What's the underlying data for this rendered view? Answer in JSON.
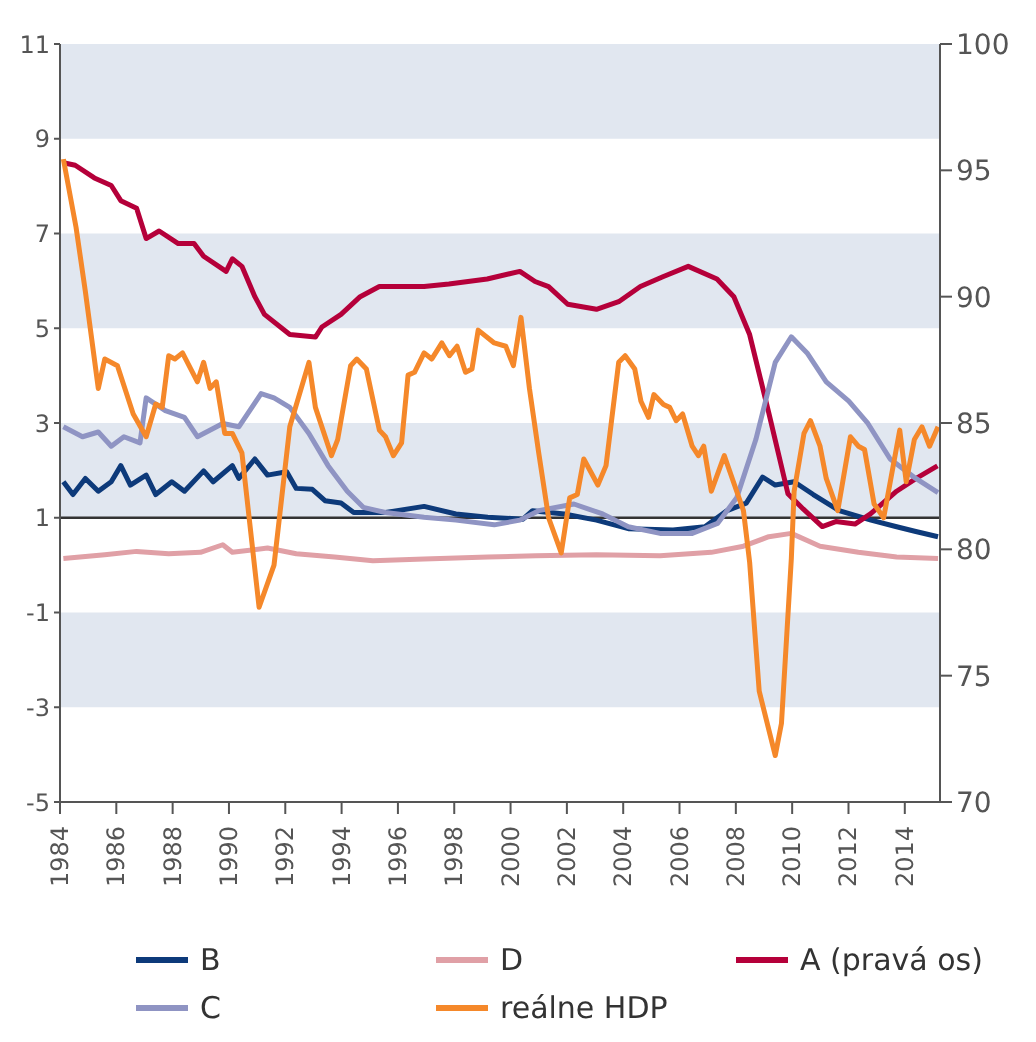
{
  "chart_data": {
    "type": "line",
    "xlim": [
      1984,
      2015.25
    ],
    "xticks": [
      1984,
      1986,
      1988,
      1990,
      1992,
      1994,
      1996,
      1998,
      2000,
      2002,
      2004,
      2006,
      2008,
      2010,
      2012,
      2014
    ],
    "ylim": [
      -5,
      11
    ],
    "yticks": [
      -5,
      -3,
      -1,
      1,
      3,
      5,
      7,
      9,
      11
    ],
    "y2lim": [
      70,
      100
    ],
    "y2ticks": [
      70,
      75,
      80,
      85,
      90,
      95,
      100
    ],
    "legend": "bottom",
    "grid": false,
    "bands": [
      {
        "axis": "y",
        "from": 9,
        "to": 11,
        "color": "#e1e7f0"
      },
      {
        "axis": "y",
        "from": 5,
        "to": 7,
        "color": "#e1e7f0"
      },
      {
        "axis": "y",
        "from": 1,
        "to": 3,
        "color": "#e1e7f0"
      },
      {
        "axis": "y",
        "from": -3,
        "to": -1,
        "color": "#e1e7f0"
      }
    ],
    "ref_lines": [
      {
        "axis": "y",
        "value": 1,
        "color": "#333333"
      }
    ],
    "series": [
      {
        "name": "B",
        "color": "#0d3a7a",
        "x": [
          1984.12,
          1984.46,
          1984.9,
          1985.36,
          1985.82,
          1986.16,
          1986.5,
          1987.06,
          1987.4,
          1987.97,
          1988.42,
          1989.1,
          1989.44,
          1990.12,
          1990.35,
          1990.92,
          1991.37,
          1992.05,
          1992.39,
          1992.96,
          1993.41,
          1993.98,
          1994.43,
          1995.56,
          1996.93,
          1998.06,
          1999.19,
          2000.44,
          2000.78,
          2001.91,
          2003.05,
          2004.18,
          2005.77,
          2006.9,
          2007.69,
          2008.37,
          2008.95,
          2009.4,
          2010.07,
          2010.75,
          2011.67,
          2012.8,
          2013.71,
          2014.39,
          2015.18
        ],
        "values": [
          1.76,
          1.49,
          1.83,
          1.56,
          1.76,
          2.1,
          1.69,
          1.9,
          1.49,
          1.76,
          1.56,
          1.99,
          1.76,
          2.1,
          1.83,
          2.24,
          1.9,
          1.97,
          1.62,
          1.6,
          1.36,
          1.31,
          1.11,
          1.11,
          1.24,
          1.08,
          1.01,
          0.97,
          1.15,
          1.08,
          0.95,
          0.77,
          0.74,
          0.81,
          1.15,
          1.31,
          1.86,
          1.69,
          1.76,
          1.49,
          1.15,
          0.95,
          0.81,
          0.71,
          0.6
        ]
      },
      {
        "name": "D",
        "color": "#e0a0a6",
        "x": [
          1984.12,
          1985.59,
          1986.72,
          1987.86,
          1988.99,
          1989.78,
          1990.12,
          1991.37,
          1992.39,
          1993.75,
          1995.11,
          1996.93,
          1999.19,
          2000.89,
          2003.05,
          2005.31,
          2007.13,
          2008.27,
          2009.17,
          2009.97,
          2010.99,
          2012.35,
          2013.71,
          2015.18
        ],
        "values": [
          0.14,
          0.22,
          0.29,
          0.24,
          0.27,
          0.43,
          0.27,
          0.36,
          0.24,
          0.17,
          0.09,
          0.13,
          0.17,
          0.2,
          0.22,
          0.2,
          0.27,
          0.4,
          0.6,
          0.67,
          0.4,
          0.27,
          0.17,
          0.14
        ]
      },
      {
        "name": "A (pravá os)",
        "color": "#b5003a",
        "axis": "y2",
        "x": [
          1984.12,
          1984.54,
          1985.22,
          1985.82,
          1986.16,
          1986.72,
          1987.06,
          1987.52,
          1988.2,
          1988.76,
          1989.1,
          1989.9,
          1990.12,
          1990.46,
          1990.92,
          1991.26,
          1992.16,
          1993.07,
          1993.3,
          1993.98,
          1994.66,
          1995.34,
          1996.45,
          1996.93,
          1997.81,
          1999.17,
          2000.33,
          2000.87,
          2001.35,
          2002.03,
          2003.05,
          2003.84,
          2004.61,
          2005.43,
          2006.31,
          2007.33,
          2007.93,
          2008.49,
          2009.17,
          2009.85,
          2010.39,
          2011.07,
          2011.55,
          2012.23,
          2012.78,
          2013.71,
          2014.39,
          2015.16
        ],
        "values": [
          95.3,
          95.2,
          94.7,
          94.4,
          93.8,
          93.5,
          92.3,
          92.6,
          92.1,
          92.1,
          91.6,
          91.0,
          91.5,
          91.2,
          90.0,
          89.3,
          88.5,
          88.4,
          88.8,
          89.3,
          90.0,
          90.4,
          90.4,
          90.4,
          90.5,
          90.7,
          91.0,
          90.6,
          90.4,
          89.7,
          89.5,
          89.8,
          90.4,
          90.8,
          91.2,
          90.7,
          90.0,
          88.5,
          85.4,
          82.2,
          81.6,
          80.9,
          81.1,
          81.0,
          81.4,
          82.3,
          82.8,
          83.3
        ]
      },
      {
        "name": "C",
        "color": "#8f94c3",
        "x": [
          1984.12,
          1984.8,
          1985.36,
          1985.82,
          1986.27,
          1986.84,
          1987.06,
          1987.74,
          1988.42,
          1988.88,
          1989.78,
          1990.35,
          1991.14,
          1991.6,
          1992.16,
          1992.84,
          1993.52,
          1994.2,
          1994.77,
          1995.56,
          1996.93,
          1998.06,
          1999.42,
          2000.33,
          2001.0,
          2002.25,
          2003.27,
          2004.18,
          2005.31,
          2006.45,
          2007.35,
          2008.03,
          2008.71,
          2009.4,
          2009.97,
          2010.53,
          2011.21,
          2012.01,
          2012.69,
          2013.48,
          2014.39,
          2015.18
        ],
        "values": [
          2.92,
          2.71,
          2.81,
          2.51,
          2.71,
          2.58,
          3.53,
          3.26,
          3.12,
          2.71,
          2.99,
          2.92,
          3.62,
          3.53,
          3.33,
          2.78,
          2.1,
          1.56,
          1.22,
          1.11,
          1.01,
          0.95,
          0.85,
          0.95,
          1.15,
          1.29,
          1.08,
          0.81,
          0.67,
          0.67,
          0.88,
          1.42,
          2.65,
          4.28,
          4.82,
          4.48,
          3.87,
          3.46,
          2.99,
          2.24,
          1.83,
          1.53
        ]
      },
      {
        "name": "reálne HDP",
        "color": "#f5882a",
        "x": [
          1984.12,
          1984.57,
          1984.9,
          1985.36,
          1985.59,
          1986.04,
          1986.6,
          1987.06,
          1987.4,
          1987.63,
          1987.86,
          1988.08,
          1988.35,
          1988.88,
          1989.1,
          1989.33,
          1989.55,
          1989.85,
          1990.12,
          1990.46,
          1991.07,
          1991.6,
          1992.16,
          1992.84,
          1993.07,
          1993.64,
          1993.86,
          1994.32,
          1994.54,
          1994.88,
          1995.34,
          1995.56,
          1995.84,
          1996.13,
          1996.36,
          1996.59,
          1996.93,
          1997.2,
          1997.56,
          1997.83,
          1998.1,
          1998.4,
          1998.63,
          1998.85,
          1999.42,
          1999.83,
          2000.1,
          2000.37,
          2000.67,
          2001.0,
          2001.35,
          2001.8,
          2002.1,
          2002.37,
          2002.6,
          2003.1,
          2003.39,
          2003.84,
          2004.07,
          2004.41,
          2004.63,
          2004.9,
          2005.09,
          2005.43,
          2005.65,
          2005.88,
          2006.11,
          2006.45,
          2006.67,
          2006.86,
          2007.13,
          2007.59,
          2008.03,
          2008.27,
          2008.49,
          2008.83,
          2009.4,
          2009.62,
          2009.97,
          2010.07,
          2010.42,
          2010.65,
          2010.99,
          2011.21,
          2011.62,
          2012.07,
          2012.35,
          2012.57,
          2012.91,
          2013.25,
          2013.82,
          2014.05,
          2014.34,
          2014.61,
          2014.88,
          2015.18
        ],
        "values": [
          8.57,
          7.13,
          5.78,
          3.73,
          4.35,
          4.21,
          3.19,
          2.71,
          3.4,
          3.33,
          4.42,
          4.35,
          4.48,
          3.87,
          4.28,
          3.73,
          3.87,
          2.78,
          2.78,
          2.37,
          -0.89,
          0.0,
          2.92,
          4.28,
          3.33,
          2.31,
          2.65,
          4.21,
          4.35,
          4.14,
          2.85,
          2.71,
          2.31,
          2.58,
          4.01,
          4.07,
          4.48,
          4.35,
          4.69,
          4.42,
          4.62,
          4.07,
          4.14,
          4.96,
          4.69,
          4.62,
          4.21,
          5.23,
          3.73,
          2.37,
          1.0,
          0.26,
          1.42,
          1.49,
          2.24,
          1.69,
          2.1,
          4.28,
          4.42,
          4.14,
          3.46,
          3.12,
          3.6,
          3.39,
          3.33,
          3.05,
          3.19,
          2.51,
          2.31,
          2.51,
          1.56,
          2.31,
          1.56,
          1.15,
          0.06,
          -2.66,
          -4.02,
          -3.34,
          0.13,
          1.56,
          2.78,
          3.05,
          2.51,
          1.83,
          1.15,
          2.71,
          2.51,
          2.44,
          1.29,
          1.0,
          2.85,
          1.76,
          2.65,
          2.92,
          2.51,
          2.92
        ]
      }
    ]
  }
}
